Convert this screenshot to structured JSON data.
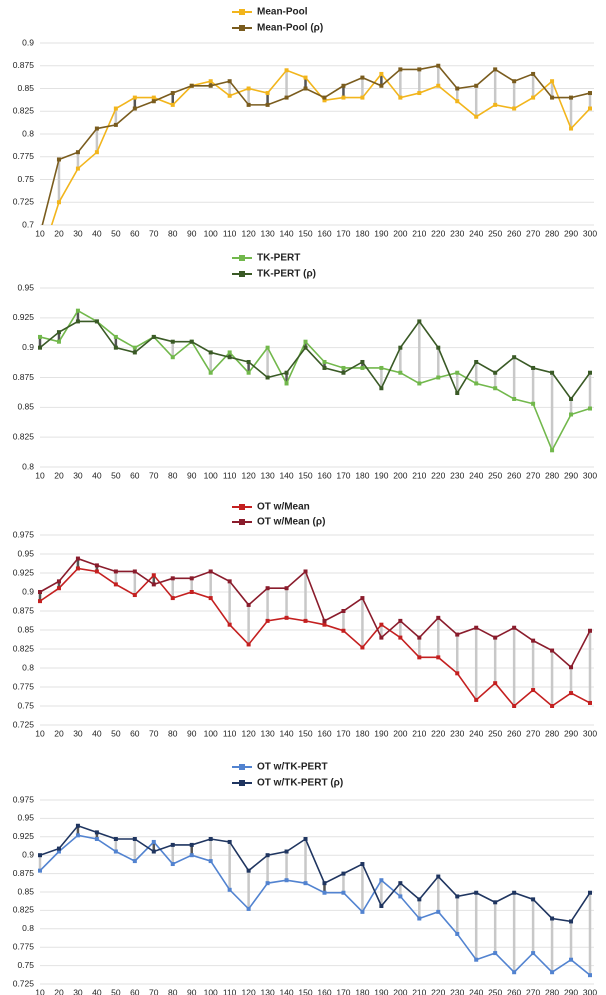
{
  "chart_data": [
    {
      "type": "line",
      "categories": [
        10,
        20,
        30,
        40,
        50,
        60,
        70,
        80,
        90,
        100,
        110,
        120,
        130,
        140,
        150,
        160,
        170,
        180,
        190,
        200,
        210,
        220,
        230,
        240,
        250,
        260,
        270,
        280,
        290,
        300
      ],
      "ylim": [
        0.7,
        0.9
      ],
      "yticks": [
        0.7,
        0.725,
        0.75,
        0.775,
        0.8,
        0.825,
        0.85,
        0.875,
        0.9
      ],
      "grid": true,
      "series": [
        {
          "name": "Mean-Pool",
          "color": "#f2b51c",
          "values": [
            0.66,
            0.725,
            0.762,
            0.78,
            0.828,
            0.84,
            0.84,
            0.832,
            0.853,
            0.858,
            0.842,
            0.85,
            0.845,
            0.87,
            0.862,
            0.837,
            0.84,
            0.84,
            0.866,
            0.84,
            0.845,
            0.853,
            0.836,
            0.819,
            0.832,
            0.828,
            0.84,
            0.858,
            0.806,
            0.828
          ]
        },
        {
          "name": "Mean-Pool (ρ)",
          "color": "#7a5c1e",
          "values": [
            0.69,
            0.772,
            0.78,
            0.806,
            0.81,
            0.828,
            0.836,
            0.845,
            0.853,
            0.853,
            0.858,
            0.832,
            0.832,
            0.84,
            0.85,
            0.84,
            0.853,
            0.862,
            0.853,
            0.871,
            0.871,
            0.875,
            0.85,
            0.853,
            0.871,
            0.858,
            0.866,
            0.84,
            0.84,
            0.845
          ]
        }
      ]
    },
    {
      "type": "line",
      "categories": [
        10,
        20,
        30,
        40,
        50,
        60,
        70,
        80,
        90,
        100,
        110,
        120,
        130,
        140,
        150,
        160,
        170,
        180,
        190,
        200,
        210,
        220,
        230,
        240,
        250,
        260,
        270,
        280,
        290,
        300
      ],
      "ylim": [
        0.8,
        0.95
      ],
      "yticks": [
        0.8,
        0.825,
        0.85,
        0.875,
        0.9,
        0.925,
        0.95
      ],
      "grid": true,
      "series": [
        {
          "name": "TK-PERT",
          "color": "#72b84c",
          "values": [
            0.909,
            0.905,
            0.931,
            0.922,
            0.909,
            0.9,
            0.909,
            0.892,
            0.905,
            0.879,
            0.896,
            0.879,
            0.9,
            0.87,
            0.905,
            0.888,
            0.883,
            0.883,
            0.883,
            0.879,
            0.87,
            0.875,
            0.879,
            0.87,
            0.866,
            0.857,
            0.853,
            0.814,
            0.844,
            0.849
          ]
        },
        {
          "name": "TK-PERT (ρ)",
          "color": "#3a5a26",
          "values": [
            0.9,
            0.913,
            0.922,
            0.922,
            0.9,
            0.896,
            0.909,
            0.905,
            0.905,
            0.896,
            0.892,
            0.888,
            0.875,
            0.879,
            0.9,
            0.883,
            0.879,
            0.888,
            0.866,
            0.9,
            0.922,
            0.9,
            0.862,
            0.888,
            0.879,
            0.892,
            0.883,
            0.879,
            0.857,
            0.879
          ]
        }
      ]
    },
    {
      "type": "line",
      "categories": [
        10,
        20,
        30,
        40,
        50,
        60,
        70,
        80,
        90,
        100,
        110,
        120,
        130,
        140,
        150,
        160,
        170,
        180,
        190,
        200,
        210,
        220,
        230,
        240,
        250,
        260,
        270,
        280,
        290,
        300
      ],
      "ylim": [
        0.725,
        0.975
      ],
      "yticks": [
        0.725,
        0.75,
        0.775,
        0.8,
        0.825,
        0.85,
        0.875,
        0.9,
        0.925,
        0.95,
        0.975
      ],
      "grid": true,
      "series": [
        {
          "name": "OT w/Mean",
          "color": "#c42020",
          "values": [
            0.888,
            0.905,
            0.931,
            0.927,
            0.91,
            0.896,
            0.922,
            0.892,
            0.9,
            0.892,
            0.857,
            0.831,
            0.862,
            0.866,
            0.862,
            0.857,
            0.849,
            0.827,
            0.857,
            0.84,
            0.814,
            0.814,
            0.793,
            0.758,
            0.78,
            0.75,
            0.771,
            0.75,
            0.767,
            0.754
          ]
        },
        {
          "name": "OT w/Mean (ρ)",
          "color": "#8a1c2c",
          "values": [
            0.9,
            0.914,
            0.944,
            0.935,
            0.927,
            0.927,
            0.91,
            0.918,
            0.918,
            0.927,
            0.914,
            0.883,
            0.905,
            0.905,
            0.927,
            0.862,
            0.875,
            0.892,
            0.84,
            0.862,
            0.84,
            0.866,
            0.844,
            0.853,
            0.84,
            0.853,
            0.836,
            0.823,
            0.801,
            0.849
          ]
        }
      ]
    },
    {
      "type": "line",
      "categories": [
        10,
        20,
        30,
        40,
        50,
        60,
        70,
        80,
        90,
        100,
        110,
        120,
        130,
        140,
        150,
        160,
        170,
        180,
        190,
        200,
        210,
        220,
        230,
        240,
        250,
        260,
        270,
        280,
        290,
        300
      ],
      "ylim": [
        0.725,
        0.975
      ],
      "yticks": [
        0.725,
        0.75,
        0.775,
        0.8,
        0.825,
        0.85,
        0.875,
        0.9,
        0.925,
        0.95,
        0.975
      ],
      "grid": true,
      "series": [
        {
          "name": "OT w/TK-PERT",
          "color": "#5283d0",
          "values": [
            0.879,
            0.905,
            0.927,
            0.922,
            0.905,
            0.892,
            0.918,
            0.888,
            0.9,
            0.892,
            0.853,
            0.827,
            0.862,
            0.866,
            0.862,
            0.849,
            0.849,
            0.823,
            0.866,
            0.844,
            0.814,
            0.823,
            0.793,
            0.758,
            0.767,
            0.741,
            0.767,
            0.741,
            0.758,
            0.737
          ]
        },
        {
          "name": "OT w/TK-PERT (ρ)",
          "color": "#1f3560",
          "values": [
            0.9,
            0.909,
            0.94,
            0.931,
            0.922,
            0.922,
            0.905,
            0.914,
            0.914,
            0.922,
            0.918,
            0.879,
            0.9,
            0.905,
            0.922,
            0.862,
            0.875,
            0.888,
            0.831,
            0.862,
            0.84,
            0.871,
            0.844,
            0.849,
            0.836,
            0.849,
            0.84,
            0.814,
            0.81,
            0.849
          ]
        }
      ]
    }
  ]
}
